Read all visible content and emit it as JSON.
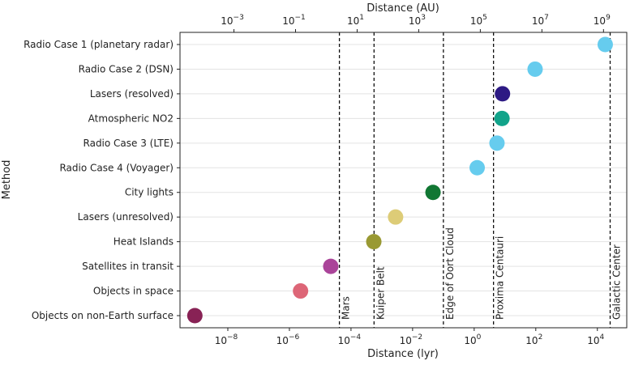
{
  "chart_data": {
    "type": "scatter",
    "xlabel": "Distance (lyr)",
    "x2label": "Distance (AU)",
    "ylabel": "Method",
    "xscale": "log",
    "xlim": [
      2.8e-10,
      90000.0
    ],
    "grid": "horizontal",
    "x_ticks": [
      {
        "value": 1e-08,
        "base": "10",
        "exp": "−8"
      },
      {
        "value": 1e-06,
        "base": "10",
        "exp": "−6"
      },
      {
        "value": 0.0001,
        "base": "10",
        "exp": "−4"
      },
      {
        "value": 0.01,
        "base": "10",
        "exp": "−2"
      },
      {
        "value": 1,
        "base": "10",
        "exp": "0"
      },
      {
        "value": 100.0,
        "base": "10",
        "exp": "2"
      },
      {
        "value": 10000.0,
        "base": "10",
        "exp": "4"
      }
    ],
    "x2_ticks": [
      {
        "value": 0.001,
        "base": "10",
        "exp": "−3"
      },
      {
        "value": 0.1,
        "base": "10",
        "exp": "−1"
      },
      {
        "value": 10.0,
        "base": "10",
        "exp": "1"
      },
      {
        "value": 1000.0,
        "base": "10",
        "exp": "3"
      },
      {
        "value": 100000.0,
        "base": "10",
        "exp": "5"
      },
      {
        "value": 10000000.0,
        "base": "10",
        "exp": "7"
      },
      {
        "value": 1000000000.0,
        "base": "10",
        "exp": "9"
      }
    ],
    "au_per_lyr": 63241,
    "points": [
      {
        "label": "Radio Case 1 (planetary radar)",
        "x": 18000,
        "color": "#66ccee"
      },
      {
        "label": "Radio Case 2 (DSN)",
        "x": 95,
        "color": "#66ccee"
      },
      {
        "label": "Lasers (resolved)",
        "x": 8.3,
        "color": "#2d1a84"
      },
      {
        "label": "Atmospheric NO2",
        "x": 8.0,
        "color": "#11a38a"
      },
      {
        "label": "Radio Case 3 (LTE)",
        "x": 5.5,
        "color": "#66ccee"
      },
      {
        "label": "Radio Case 4 (Voyager)",
        "x": 1.25,
        "color": "#66ccee"
      },
      {
        "label": "City lights",
        "x": 0.046,
        "color": "#117733"
      },
      {
        "label": "Lasers (unresolved)",
        "x": 0.0028,
        "color": "#ddcc77"
      },
      {
        "label": "Heat Islands",
        "x": 0.00055,
        "color": "#999933"
      },
      {
        "label": "Satellites in transit",
        "x": 2.2e-05,
        "color": "#aa4499"
      },
      {
        "label": "Objects in space",
        "x": 2.3e-06,
        "color": "#dd6677"
      },
      {
        "label": "Objects on non-Earth surface",
        "x": 8.5e-10,
        "color": "#882255"
      }
    ],
    "reference_lines": [
      {
        "label": "Mars",
        "x": 4.2e-05
      },
      {
        "label": "Kuiper Belt",
        "x": 0.00056
      },
      {
        "label": "Edge of Oort Cloud",
        "x": 0.1
      },
      {
        "label": "Proxima Centauri",
        "x": 4.24
      },
      {
        "label": "Galactic Center",
        "x": 26000
      }
    ]
  }
}
